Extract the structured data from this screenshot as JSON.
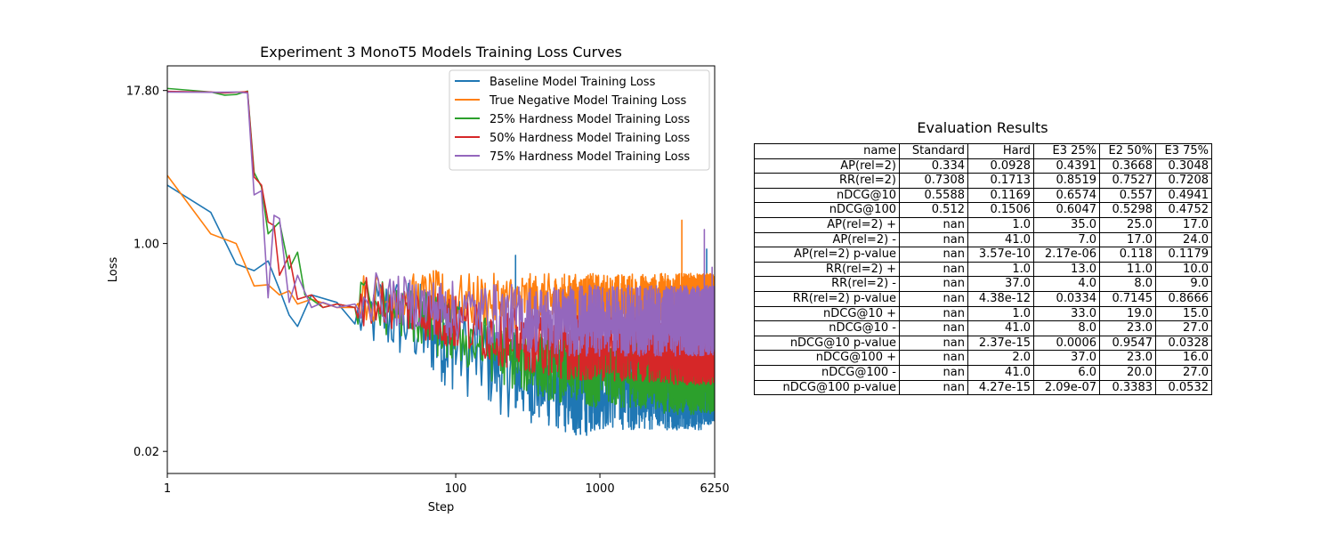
{
  "chart_data": [
    {
      "type": "line",
      "title": "Experiment 3 MonoT5 Models Training Loss Curves",
      "xlabel": "Step",
      "ylabel": "Loss",
      "x_scale": "log",
      "y_scale": "log",
      "xlim": [
        1,
        6250
      ],
      "ylim": [
        0.0132,
        28.3
      ],
      "x_ticks": [
        "1",
        "100",
        "1000",
        "6250"
      ],
      "x_tick_values": [
        1,
        100,
        1000,
        6250
      ],
      "y_ticks": [
        "0.02",
        "1.00",
        "17.80"
      ],
      "y_tick_values": [
        0.02,
        1.0,
        17.8
      ],
      "legend_position": "top-right",
      "series": [
        {
          "name": "Baseline Model Training Loss",
          "color": "#1f77b4",
          "x": [
            1,
            2,
            3,
            4,
            5,
            6,
            7,
            8,
            10,
            15,
            20,
            30,
            50,
            70,
            100,
            150,
            200,
            300,
            500,
            700,
            1000,
            1500,
            2000,
            3000,
            4000,
            5000,
            6250
          ],
          "y": [
            3.0,
            1.8,
            0.68,
            0.6,
            0.72,
            0.42,
            0.26,
            0.21,
            0.38,
            0.33,
            0.22,
            0.32,
            0.28,
            0.22,
            0.2,
            0.15,
            0.12,
            0.1,
            0.085,
            0.08,
            0.08,
            0.078,
            0.075,
            0.07,
            0.07,
            0.065,
            0.065
          ],
          "noise_min": [
            0,
            0,
            0,
            0,
            0,
            0,
            0,
            0,
            0,
            0,
            0.14,
            0.12,
            0.1,
            0.08,
            0.06,
            0.05,
            0.04,
            0.035,
            0.03,
            0.025,
            0.03,
            0.03,
            0.03,
            0.03,
            0.03,
            0.03,
            0.035
          ]
        },
        {
          "name": "True Negative Model Training Loss",
          "color": "#ff7f0e",
          "x": [
            1,
            2,
            3,
            4,
            5,
            6,
            7,
            8,
            10,
            15,
            20,
            30,
            50,
            70,
            100,
            150,
            200,
            300,
            500,
            700,
            1000,
            1500,
            2000,
            3000,
            4000,
            5000,
            6250
          ],
          "y": [
            3.6,
            1.2,
            1.0,
            0.45,
            0.46,
            0.38,
            0.41,
            0.32,
            0.35,
            0.3,
            0.3,
            0.3,
            0.3,
            0.32,
            0.3,
            0.3,
            0.3,
            0.3,
            0.3,
            0.3,
            0.3,
            0.3,
            0.3,
            0.3,
            0.3,
            0.3,
            0.3
          ],
          "noise_min": [
            0,
            0,
            0,
            0,
            0,
            0,
            0,
            0,
            0,
            0,
            0.24,
            0.22,
            0.22,
            0.22,
            0.2,
            0.2,
            0.2,
            0.2,
            0.2,
            0.2,
            0.2,
            0.2,
            0.2,
            0.2,
            0.2,
            0.2,
            0.2
          ]
        },
        {
          "name": "25% Hardness Model Training Loss",
          "color": "#2ca02c",
          "x": [
            1,
            2,
            2.5,
            3,
            3.6,
            4,
            4.5,
            5,
            6,
            7,
            8,
            9,
            10,
            12,
            15,
            20,
            30,
            50,
            70,
            100,
            150,
            200,
            300,
            500,
            700,
            1000,
            1500,
            2000,
            3000,
            4000,
            5000,
            6250
          ],
          "y": [
            18.5,
            17.3,
            16.3,
            16.5,
            17.6,
            3.8,
            2.9,
            1.2,
            1.5,
            0.62,
            0.85,
            0.38,
            0.35,
            0.3,
            0.32,
            0.3,
            0.28,
            0.24,
            0.2,
            0.17,
            0.14,
            0.12,
            0.1,
            0.1,
            0.1,
            0.1,
            0.1,
            0.1,
            0.1,
            0.1,
            0.1,
            0.1
          ],
          "noise_min": [
            0,
            0,
            0,
            0,
            0,
            0,
            0,
            0,
            0,
            0,
            0,
            0,
            0,
            0,
            0,
            0.2,
            0.18,
            0.15,
            0.12,
            0.1,
            0.08,
            0.07,
            0.06,
            0.05,
            0.05,
            0.045,
            0.045,
            0.045,
            0.04,
            0.04,
            0.04,
            0.04
          ]
        },
        {
          "name": "50% Hardness Model Training Loss",
          "color": "#d62728",
          "x": [
            1,
            2,
            2.5,
            3,
            3.6,
            4,
            4.5,
            5,
            5.5,
            6,
            7,
            8,
            10,
            12,
            15,
            20,
            30,
            50,
            70,
            100,
            150,
            200,
            300,
            500,
            700,
            1000,
            1500,
            2000,
            3000,
            4000,
            5000,
            6250
          ],
          "y": [
            17.5,
            17.3,
            17.0,
            17.2,
            17.4,
            3.5,
            3.0,
            1.5,
            1.4,
            0.55,
            0.8,
            0.35,
            0.38,
            0.3,
            0.32,
            0.3,
            0.28,
            0.25,
            0.22,
            0.2,
            0.18,
            0.17,
            0.15,
            0.14,
            0.14,
            0.13,
            0.13,
            0.13,
            0.13,
            0.13,
            0.13,
            0.13
          ],
          "noise_min": [
            0,
            0,
            0,
            0,
            0,
            0,
            0,
            0,
            0,
            0,
            0,
            0,
            0,
            0,
            0,
            0.22,
            0.2,
            0.18,
            0.15,
            0.13,
            0.11,
            0.1,
            0.09,
            0.08,
            0.075,
            0.075,
            0.075,
            0.075,
            0.07,
            0.07,
            0.07,
            0.07
          ]
        },
        {
          "name": "75% Hardness Model Training Loss",
          "color": "#9467bd",
          "x": [
            1,
            2,
            3,
            3.6,
            4,
            4.5,
            5,
            5.5,
            6,
            7,
            8,
            10,
            12,
            15,
            20,
            30,
            50,
            70,
            100,
            150,
            200,
            300,
            500,
            700,
            1000,
            1500,
            2000,
            3000,
            4000,
            5000,
            6250
          ],
          "y": [
            17.3,
            17.2,
            17.3,
            17.0,
            2.5,
            2.7,
            0.36,
            1.7,
            1.6,
            0.33,
            0.55,
            0.3,
            0.33,
            0.3,
            0.32,
            0.3,
            0.28,
            0.27,
            0.26,
            0.25,
            0.25,
            0.24,
            0.24,
            0.24,
            0.24,
            0.24,
            0.24,
            0.24,
            0.24,
            0.24,
            0.24
          ],
          "noise_min": [
            0,
            0,
            0,
            0,
            0,
            0,
            0,
            0,
            0,
            0,
            0,
            0,
            0,
            0,
            0.24,
            0.22,
            0.2,
            0.18,
            0.16,
            0.15,
            0.14,
            0.13,
            0.12,
            0.12,
            0.12,
            0.12,
            0.12,
            0.12,
            0.12,
            0.12,
            0.12
          ]
        }
      ],
      "spikes": [
        {
          "series": 0,
          "x": 260,
          "y": 0.8
        },
        {
          "series": 0,
          "x": 5500,
          "y": 0.9
        },
        {
          "series": 1,
          "x": 290,
          "y": 0.52
        },
        {
          "series": 1,
          "x": 3700,
          "y": 1.55
        },
        {
          "series": 4,
          "x": 5300,
          "y": 1.3
        },
        {
          "series": 4,
          "x": 6000,
          "y": 0.64
        }
      ]
    },
    {
      "type": "table",
      "title": "Evaluation Results",
      "columns": [
        "name",
        "Standard",
        "Hard",
        "E3 25%",
        "E2 50%",
        "E3 75%"
      ],
      "rows": [
        [
          "AP(rel=2)",
          "0.334",
          "0.0928",
          "0.4391",
          "0.3668",
          "0.3048"
        ],
        [
          "RR(rel=2)",
          "0.7308",
          "0.1713",
          "0.8519",
          "0.7527",
          "0.7208"
        ],
        [
          "nDCG@10",
          "0.5588",
          "0.1169",
          "0.6574",
          "0.557",
          "0.4941"
        ],
        [
          "nDCG@100",
          "0.512",
          "0.1506",
          "0.6047",
          "0.5298",
          "0.4752"
        ],
        [
          "AP(rel=2) +",
          "nan",
          "1.0",
          "35.0",
          "25.0",
          "17.0"
        ],
        [
          "AP(rel=2) -",
          "nan",
          "41.0",
          "7.0",
          "17.0",
          "24.0"
        ],
        [
          "AP(rel=2) p-value",
          "nan",
          "3.57e-10",
          "2.17e-06",
          "0.118",
          "0.1179"
        ],
        [
          "RR(rel=2) +",
          "nan",
          "1.0",
          "13.0",
          "11.0",
          "10.0"
        ],
        [
          "RR(rel=2) -",
          "nan",
          "37.0",
          "4.0",
          "8.0",
          "9.0"
        ],
        [
          "RR(rel=2) p-value",
          "nan",
          "4.38e-12",
          "0.0334",
          "0.7145",
          "0.8666"
        ],
        [
          "nDCG@10 +",
          "nan",
          "1.0",
          "33.0",
          "19.0",
          "15.0"
        ],
        [
          "nDCG@10 -",
          "nan",
          "41.0",
          "8.0",
          "23.0",
          "27.0"
        ],
        [
          "nDCG@10 p-value",
          "nan",
          "2.37e-15",
          "0.0006",
          "0.9547",
          "0.0328"
        ],
        [
          "nDCG@100 +",
          "nan",
          "2.0",
          "37.0",
          "23.0",
          "16.0"
        ],
        [
          "nDCG@100 -",
          "nan",
          "41.0",
          "6.0",
          "20.0",
          "27.0"
        ],
        [
          "nDCG@100 p-value",
          "nan",
          "4.27e-15",
          "2.09e-07",
          "0.3383",
          "0.0532"
        ]
      ]
    }
  ]
}
